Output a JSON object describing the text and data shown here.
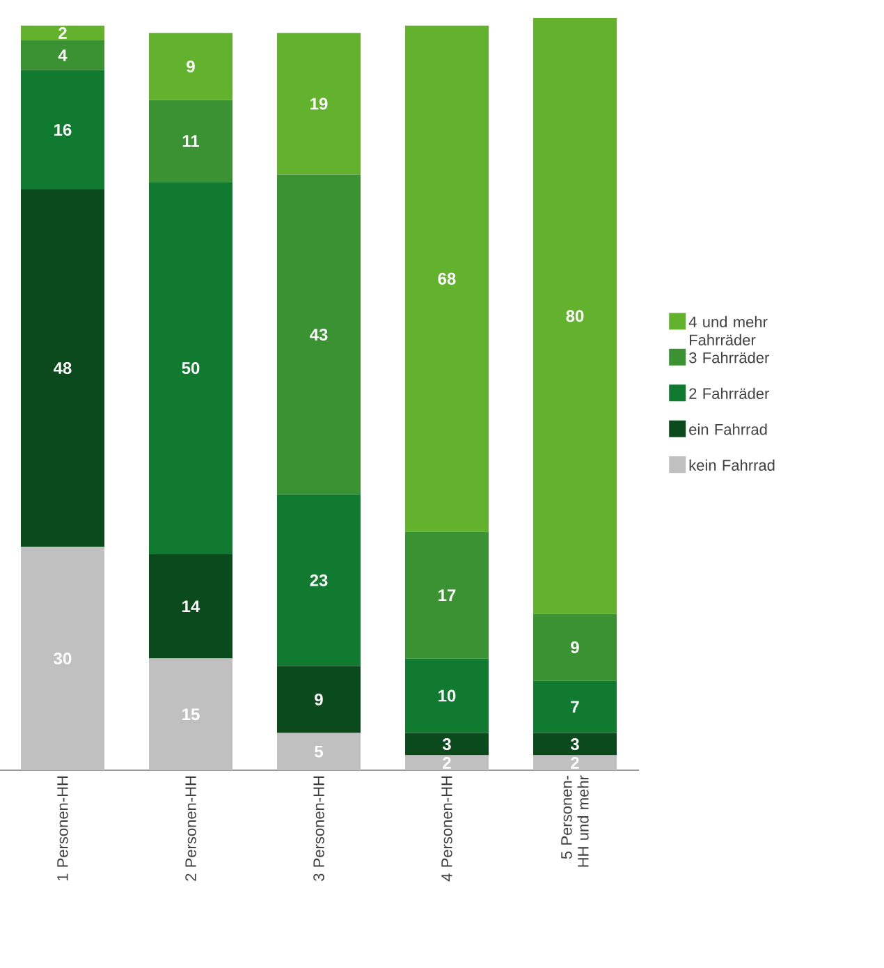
{
  "chart_data": {
    "type": "bar",
    "stacked": true,
    "data_labels": true,
    "tick_labels": "x",
    "legend": "right",
    "categories": [
      "1 Personen-HH",
      "2 Personen-HH",
      "3 Personen-HH",
      "4 Personen-HH",
      "5 Personen-HH und mehr"
    ],
    "series": [
      {
        "name": "kein Fahrrad",
        "color": "#c0c0c0",
        "values": [
          30,
          15,
          5,
          2,
          2
        ]
      },
      {
        "name": "ein Fahrrad",
        "color": "#0b4a1c",
        "values": [
          48,
          14,
          9,
          3,
          3
        ]
      },
      {
        "name": "2 Fahrräder",
        "color": "#0f7a30",
        "values": [
          16,
          50,
          23,
          10,
          7
        ]
      },
      {
        "name": "3 Fahrräder",
        "color": "#3a9232",
        "values": [
          4,
          11,
          43,
          17,
          9
        ]
      },
      {
        "name": "4 und mehr Fahrräder",
        "color": "#62b22e",
        "values": [
          2,
          9,
          19,
          68,
          80
        ]
      }
    ]
  }
}
